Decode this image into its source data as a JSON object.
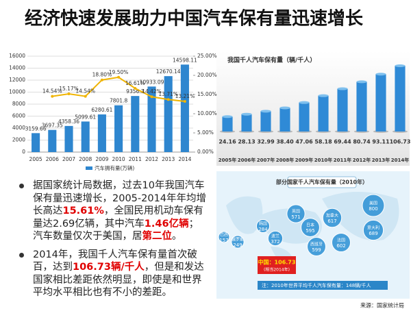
{
  "title": "经济快速发展助力中国汽车保有量迅速增长",
  "chart_data": [
    {
      "type": "bar",
      "categories": [
        "2005",
        "2006",
        "2007",
        "2008",
        "2009",
        "2010",
        "2011",
        "2012",
        "2013",
        "2014"
      ],
      "series": [
        {
          "name": "汽车拥有量(万辆)",
          "type": "bar",
          "color": "#2e86cf",
          "values": [
            3159.66,
            3697.35,
            4358.36,
            5099.61,
            6280.61,
            7801.8,
            9356.3,
            10933.09,
            12670.14,
            14598.11
          ]
        },
        {
          "type": "line",
          "axis": "y2",
          "color": "#f0b400",
          "values": [
            null,
            14.54,
            15.17,
            14.54,
            18.8,
            19.5,
            16.61,
            14.42,
            13.71,
            13.21
          ],
          "value_labels": [
            null,
            "14.54%",
            "15.17%",
            "14.54%",
            "18.80%",
            "19.50%",
            "16.61%",
            "14.42%",
            "13.71%",
            "13.21%"
          ]
        }
      ],
      "ylim": [
        0,
        16000
      ],
      "yticks": [
        0,
        2000,
        4000,
        6000,
        8000,
        10000,
        12000,
        14000,
        16000
      ],
      "y2lim": [
        0,
        25
      ],
      "y2ticks": [
        {
          "value": 0,
          "label": "0.00%"
        },
        {
          "value": 5,
          "label": "5.00%"
        },
        {
          "value": 10,
          "label": "10.00%"
        },
        {
          "value": 15,
          "label": "15.00%"
        },
        {
          "value": 20,
          "label": "20.00%"
        },
        {
          "value": 25,
          "label": "25.00%"
        }
      ],
      "grid": true,
      "legend": "bottom"
    },
    {
      "type": "bar",
      "title": "我国千人汽车保有量（辆/千人）",
      "color": "#2f8ad6",
      "categories": [
        "2005年",
        "2006年",
        "2007年",
        "2008年",
        "2009年",
        "2010年",
        "2011年",
        "2012年",
        "2013年",
        "2014年"
      ],
      "values": [
        24.16,
        28.13,
        32.99,
        38.4,
        47.06,
        58.18,
        69.44,
        80.74,
        93.11,
        106.73
      ],
      "value_labels": [
        "24.16",
        "28.13",
        "32.99",
        "38.40",
        "47.06",
        "58.18",
        "69.44",
        "80.74",
        "93.11",
        "106.73"
      ]
    }
  ],
  "bullets": [
    [
      {
        "text": "据国家统计局数据，过去10年我国汽车保有量迅速增长，2005-2014年年均增长高达"
      },
      {
        "text": "15.61%",
        "highlight": true
      },
      {
        "text": "，全国民用机动车保有量达2.69亿辆，其中汽车"
      },
      {
        "text": "1.46亿辆",
        "highlight": true
      },
      {
        "text": "；汽车数量仅次于美国，居"
      },
      {
        "text": "第二位",
        "highlight": true
      },
      {
        "text": "。"
      }
    ],
    [
      {
        "text": "2014年，我国千人汽车保有量首次破百，达到"
      },
      {
        "text": "106.73辆/千人",
        "highlight": true
      },
      {
        "text": "，但是和发达国家相比差距依然明显，即使是和世界平均水平相比也有不小的差距。"
      }
    ]
  ],
  "map": {
    "title": "部分国家千人汽车保有量（2010年）",
    "countries": [
      {
        "name": "巴西",
        "value": 157
      },
      {
        "name": "俄罗斯",
        "value": 249
      },
      {
        "name": "韩国",
        "value": 284
      },
      {
        "name": "波兰",
        "value": 372
      },
      {
        "name": "英国",
        "value": 571
      },
      {
        "name": "日本",
        "value": 595
      },
      {
        "name": "西班牙",
        "value": 599
      },
      {
        "name": "法国",
        "value": 602
      },
      {
        "name": "加拿大",
        "value": 617
      },
      {
        "name": "意大利",
        "value": 689
      },
      {
        "name": "美国",
        "value": 800
      }
    ],
    "china": "中国：106.73",
    "china_note": "(相当2014年)",
    "note": "注：2010年世界平均千人汽车保有量：148辆/千人"
  },
  "source": "来源：国家统计局"
}
